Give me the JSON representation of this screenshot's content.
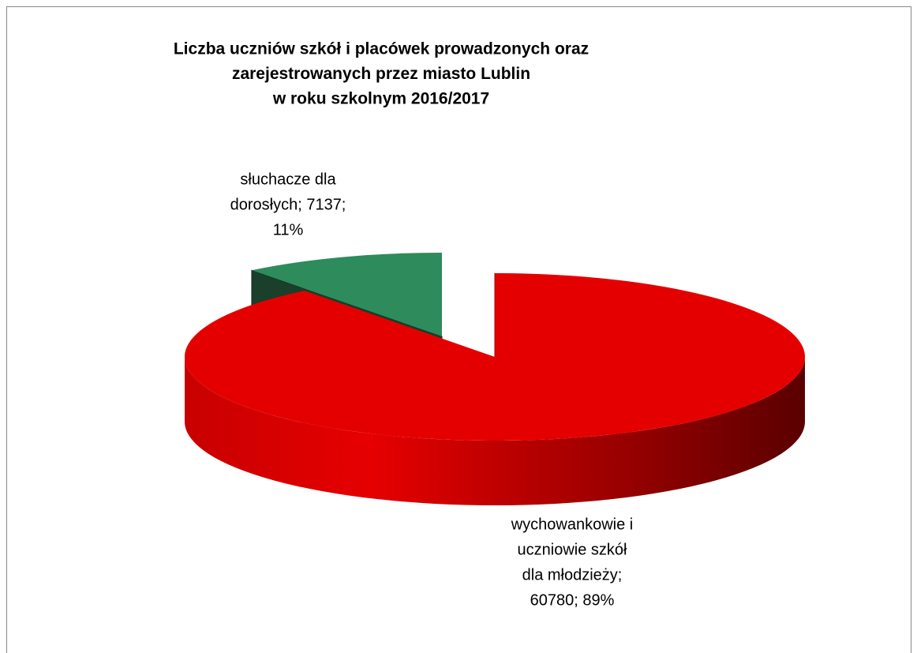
{
  "chart_data": {
    "type": "pie",
    "title": [
      "Liczba uczniów szkół i placówek  prowadzonych oraz",
      "zarejestrowanych przez miasto Lublin",
      "w roku szkolnym 2016/2017"
    ],
    "values": [
      60780,
      7137
    ],
    "value_labels": [
      [
        "wychowankowie i",
        "uczniowie szkół",
        "dla młodzieży;",
        "60780; 89%"
      ],
      [
        "słuchacze dla",
        "dorosłych; 7137;",
        "11%"
      ]
    ],
    "colors": [
      "#e50000",
      "#2e8b5c"
    ]
  }
}
